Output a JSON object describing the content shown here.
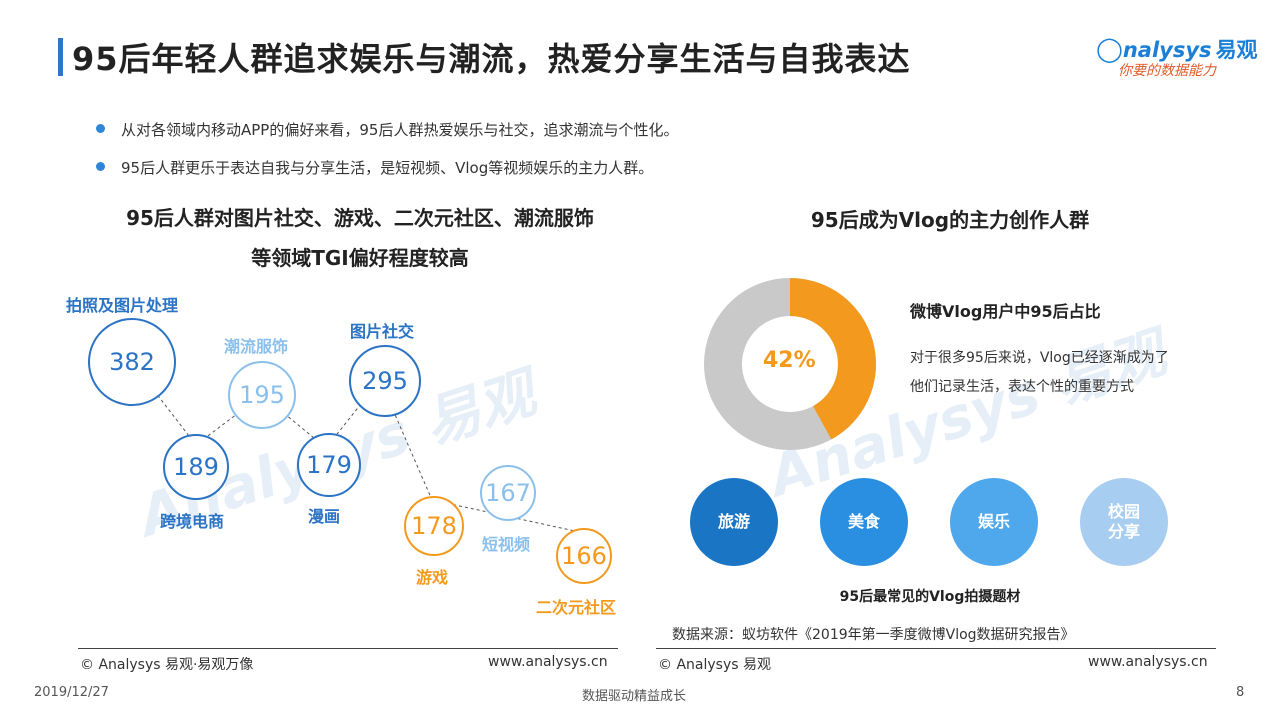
{
  "title": "95后年轻人群追求娱乐与潮流，热爱分享生活与自我表达",
  "logo": {
    "brand": "nalysys",
    "brand_cn": "易观",
    "slogan": "你要的数据能力"
  },
  "bullets": [
    "从对各领域内移动APP的偏好来看，95后人群热爱娱乐与社交，追求潮流与个性化。",
    "95后人群更乐于表达自我与分享生活，是短视频、Vlog等视频娱乐的主力人群。"
  ],
  "left_panel": {
    "title_line1": "95后人群对图片社交、游戏、二次元社区、潮流服饰",
    "title_line2": "等领域TGI偏好程度较高",
    "bubbles": [
      {
        "label": "拍照及图片处理",
        "value": "382",
        "style": "dark"
      },
      {
        "label": "跨境电商",
        "value": "189",
        "style": "dark"
      },
      {
        "label": "潮流服饰",
        "value": "195",
        "style": "light"
      },
      {
        "label": "漫画",
        "value": "179",
        "style": "dark"
      },
      {
        "label": "图片社交",
        "value": "295",
        "style": "dark"
      },
      {
        "label": "游戏",
        "value": "178",
        "style": "orange"
      },
      {
        "label": "短视频",
        "value": "167",
        "style": "light"
      },
      {
        "label": "二次元社区",
        "value": "166",
        "style": "orange"
      }
    ]
  },
  "right_panel": {
    "title": "95后成为Vlog的主力创作人群",
    "donut": {
      "percent_label": "42%",
      "share": 0.42,
      "highlight_color": "#f39a1e",
      "rest_color": "#c9c9c9"
    },
    "donut_title": "微博Vlog用户中95后占比",
    "donut_desc": "对于很多95后来说，Vlog已经逐渐成为了他们记录生活，表达个性的重要方式",
    "topics": [
      {
        "label": "旅游",
        "color": "#1a75c4"
      },
      {
        "label": "美食",
        "color": "#2a8fe0"
      },
      {
        "label": "娱乐",
        "color": "#4fa7ec"
      },
      {
        "label": "校园\n分享",
        "color": "#a7cdf1"
      }
    ],
    "topics_caption": "95后最常见的Vlog拍摄题材",
    "source": "数据来源：蚁坊软件《2019年第一季度微博Vlog数据研究报告》"
  },
  "footer": {
    "left_copyright": "© Analysys 易观·易观万像",
    "left_url": "www.analysys.cn",
    "right_copyright": "© Analysys 易观",
    "right_url": "www.analysys.cn"
  },
  "bottom": {
    "date": "2019/12/27",
    "slogan": "数据驱动精益成长",
    "page": "8"
  }
}
